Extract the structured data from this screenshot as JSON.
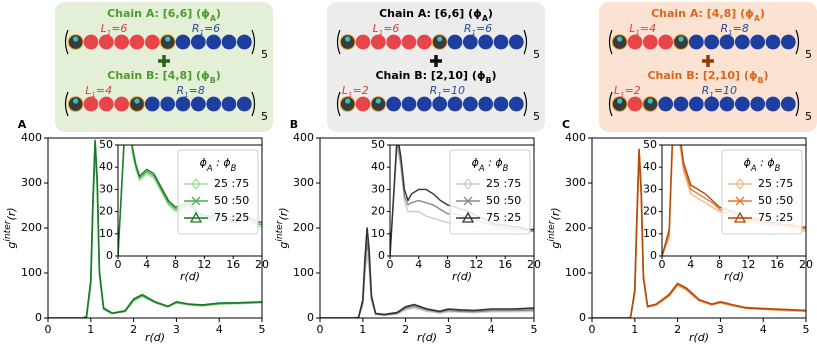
{
  "diagram_text": {
    "equals": "=",
    "repeat": "5"
  },
  "diagrams": [
    {
      "chains": [
        {
          "title": "Chain A: [6,6] (ϕ",
          "sub": "A",
          "end": ")",
          "left_label": "L",
          "left_sub": "1",
          "L": 6,
          "right_label": "R",
          "right_sub": "1",
          "R": 6
        },
        {
          "title": "Chain B: [4,8] (ϕ",
          "sub": "B",
          "end": ")",
          "left_label": "L",
          "left_sub": "1",
          "L": 4,
          "right_label": "R",
          "right_sub": "1",
          "R": 8
        }
      ]
    },
    {
      "chains": [
        {
          "title": "Chain A: [6,6] (ϕ",
          "sub": "A",
          "end": ")",
          "left_label": "L",
          "left_sub": "1",
          "L": 6,
          "right_label": "R",
          "right_sub": "1",
          "R": 6
        },
        {
          "title": "Chain B: [2,10] (ϕ",
          "sub": "B",
          "end": ")",
          "left_label": "L",
          "left_sub": "1",
          "L": 2,
          "right_label": "R",
          "right_sub": "1",
          "R": 10
        }
      ]
    },
    {
      "chains": [
        {
          "title": "Chain A: [4,8] (ϕ",
          "sub": "A",
          "end": ")",
          "left_label": "L",
          "left_sub": "1",
          "L": 4,
          "right_label": "R",
          "right_sub": "1",
          "R": 8
        },
        {
          "title": "Chain B: [2,10] (ϕ",
          "sub": "B",
          "end": ")",
          "left_label": "L",
          "left_sub": "1",
          "L": 2,
          "right_label": "R",
          "right_sub": "1",
          "R": 10
        }
      ]
    }
  ],
  "chart_data": [
    {
      "type": "line",
      "label": "A",
      "xlabel": "r(d)",
      "ylabel_parts": [
        "g",
        "inter",
        "(r)"
      ],
      "xlim": [
        0,
        5
      ],
      "ylim": [
        0,
        400
      ],
      "xticks": [
        0,
        1,
        2,
        3,
        4,
        5
      ],
      "yticks": [
        0,
        100,
        200,
        300,
        400
      ],
      "x": [
        0,
        0.8,
        0.9,
        1.0,
        1.05,
        1.1,
        1.15,
        1.2,
        1.3,
        1.5,
        1.8,
        2.0,
        2.2,
        2.5,
        2.8,
        3.0,
        3.3,
        3.6,
        4.0,
        4.5,
        5.0
      ],
      "legend_title_parts": [
        "ϕ",
        "A",
        " : ϕ",
        "B"
      ],
      "series": [
        {
          "name": "25 :75",
          "color": "#a6dba0",
          "values": [
            0,
            0,
            2,
            70,
            240,
            370,
            290,
            95,
            20,
            10,
            14,
            38,
            48,
            34,
            25,
            33,
            29,
            27,
            31,
            32,
            34
          ]
        },
        {
          "name": "50 :50",
          "color": "#4cae4c",
          "values": [
            0,
            0,
            2,
            80,
            250,
            390,
            300,
            100,
            20,
            10,
            15,
            40,
            50,
            35,
            25,
            35,
            30,
            28,
            32,
            33,
            35
          ]
        },
        {
          "name": "75 :25",
          "color": "#1b7a2a",
          "values": [
            0,
            0,
            3,
            85,
            260,
            395,
            310,
            105,
            22,
            11,
            16,
            42,
            52,
            36,
            26,
            36,
            31,
            29,
            33,
            34,
            36
          ]
        }
      ],
      "inset": {
        "xlabel": "r(d)",
        "xlim": [
          0,
          20
        ],
        "ylim": [
          0,
          50
        ],
        "xticks": [
          0,
          4,
          8,
          12,
          16,
          20
        ],
        "yticks": [
          0,
          10,
          20,
          30,
          40,
          50
        ],
        "x": [
          0,
          1,
          1.5,
          2,
          2.5,
          3,
          4,
          5,
          6,
          7,
          8,
          9,
          10,
          11,
          12,
          13,
          14,
          15,
          16,
          17,
          18,
          19,
          20
        ],
        "series": [
          {
            "values": [
              0,
              58,
              68,
              46,
              39,
              34,
              37,
              35,
              29,
              23,
              20,
              21,
              22,
              18,
              16,
              16,
              17,
              15,
              14,
              15,
              16,
              14,
              13
            ]
          },
          {
            "values": [
              0,
              60,
              70,
              48,
              40,
              35,
              38,
              36,
              30,
              24,
              21,
              22,
              23,
              19,
              17,
              17,
              18,
              16,
              15,
              16,
              17,
              15,
              14
            ]
          },
          {
            "values": [
              0,
              62,
              72,
              49,
              41,
              36,
              39,
              37,
              31,
              25,
              22,
              23,
              24,
              20,
              18,
              18,
              19,
              17,
              16,
              17,
              18,
              16,
              15
            ]
          }
        ]
      }
    },
    {
      "type": "line",
      "label": "B",
      "xlabel": "r(d)",
      "ylabel_parts": [
        "g",
        "inter",
        "(r)"
      ],
      "xlim": [
        0,
        5
      ],
      "ylim": [
        0,
        400
      ],
      "xticks": [
        0,
        1,
        2,
        3,
        4,
        5
      ],
      "yticks": [
        0,
        100,
        200,
        300,
        400
      ],
      "x": [
        0,
        0.8,
        0.9,
        1.0,
        1.05,
        1.1,
        1.15,
        1.2,
        1.3,
        1.5,
        1.8,
        2.0,
        2.2,
        2.5,
        2.8,
        3.0,
        3.3,
        3.6,
        4.0,
        4.5,
        5.0
      ],
      "legend_title_parts": [
        "ϕ",
        "A",
        " : ϕ",
        "B"
      ],
      "series": [
        {
          "name": "25 :75",
          "color": "#cccccc",
          "values": [
            0,
            0,
            1,
            30,
            100,
            140,
            110,
            40,
            8,
            6,
            9,
            18,
            22,
            15,
            11,
            14,
            13,
            12,
            14,
            14,
            15
          ]
        },
        {
          "name": "50 :50",
          "color": "#888888",
          "values": [
            0,
            0,
            1,
            35,
            115,
            170,
            130,
            45,
            9,
            7,
            10,
            22,
            26,
            18,
            13,
            17,
            15,
            14,
            17,
            17,
            18
          ]
        },
        {
          "name": "75 :25",
          "color": "#333333",
          "values": [
            0,
            0,
            1,
            40,
            130,
            200,
            150,
            50,
            10,
            8,
            12,
            25,
            30,
            20,
            15,
            20,
            18,
            17,
            20,
            20,
            22
          ]
        }
      ],
      "inset": {
        "xlabel": "r(d)",
        "xlim": [
          0,
          20
        ],
        "ylim": [
          0,
          50
        ],
        "xticks": [
          0,
          4,
          8,
          12,
          16,
          20
        ],
        "yticks": [
          0,
          10,
          20,
          30,
          40,
          50
        ],
        "x": [
          0,
          1,
          1.5,
          2,
          2.5,
          3,
          4,
          5,
          6,
          7,
          8,
          9,
          10,
          11,
          12,
          13,
          14,
          15,
          16,
          17,
          18,
          19,
          20
        ],
        "series": [
          {
            "values": [
              0,
              50,
              40,
              25,
              20,
              20,
              20,
              18,
              17,
              16,
              15,
              15,
              15,
              14,
              13,
              13,
              12,
              12,
              12,
              11,
              11,
              11,
              11
            ]
          },
          {
            "values": [
              0,
              52,
              42,
              27,
              23,
              24,
              25,
              24,
              23,
              21,
              19,
              19,
              18,
              17,
              16,
              15,
              14,
              13,
              13,
              12,
              12,
              12,
              11
            ]
          },
          {
            "values": [
              0,
              55,
              45,
              30,
              25,
              28,
              30,
              30,
              28,
              25,
              23,
              22,
              21,
              20,
              18,
              17,
              15,
              14,
              14,
              13,
              13,
              12,
              12
            ]
          }
        ]
      }
    },
    {
      "type": "line",
      "label": "C",
      "xlabel": "r(d)",
      "ylabel_parts": [
        "g",
        "inter",
        "(r)"
      ],
      "xlim": [
        0,
        5
      ],
      "ylim": [
        0,
        400
      ],
      "xticks": [
        0,
        1,
        2,
        3,
        4,
        5
      ],
      "yticks": [
        0,
        100,
        200,
        300,
        400
      ],
      "x": [
        0,
        0.8,
        0.9,
        1.0,
        1.05,
        1.1,
        1.15,
        1.2,
        1.3,
        1.5,
        1.8,
        2.0,
        2.2,
        2.5,
        2.8,
        3.0,
        3.3,
        3.6,
        4.0,
        4.5,
        5.0
      ],
      "legend_title_parts": [
        "ϕ",
        "A",
        " : ϕ",
        "B"
      ],
      "series": [
        {
          "name": "25 :75",
          "color": "#f5b78a",
          "values": [
            0,
            0,
            1,
            55,
            210,
            355,
            270,
            85,
            24,
            28,
            48,
            72,
            62,
            38,
            29,
            33,
            27,
            21,
            19,
            17,
            15
          ]
        },
        {
          "name": "50 :50",
          "color": "#e8762b",
          "values": [
            0,
            0,
            1,
            60,
            220,
            370,
            280,
            90,
            25,
            30,
            50,
            75,
            65,
            40,
            30,
            35,
            28,
            22,
            20,
            18,
            16
          ]
        },
        {
          "name": "75 :25",
          "color": "#b34a08",
          "values": [
            0,
            0,
            1,
            62,
            225,
            375,
            285,
            92,
            26,
            31,
            52,
            77,
            67,
            41,
            31,
            36,
            29,
            23,
            21,
            19,
            17
          ]
        }
      ],
      "inset": {
        "xlabel": "r(d)",
        "xlim": [
          0,
          20
        ],
        "ylim": [
          0,
          50
        ],
        "xticks": [
          0,
          4,
          8,
          12,
          16,
          20
        ],
        "yticks": [
          0,
          10,
          20,
          30,
          40,
          50
        ],
        "x": [
          0,
          1,
          1.5,
          2,
          2.5,
          3,
          4,
          5,
          6,
          7,
          8,
          9,
          10,
          11,
          12,
          13,
          14,
          15,
          16,
          17,
          18,
          19,
          20
        ],
        "series": [
          {
            "values": [
              0,
              8,
              52,
              58,
              50,
              38,
              28,
              26,
              24,
              22,
              20,
              19,
              18,
              16,
              15,
              15,
              14,
              14,
              13,
              13,
              12,
              12,
              11
            ]
          },
          {
            "values": [
              0,
              10,
              55,
              60,
              52,
              40,
              30,
              28,
              26,
              24,
              21,
              20,
              19,
              17,
              16,
              16,
              15,
              15,
              14,
              14,
              13,
              13,
              12
            ]
          },
          {
            "values": [
              0,
              12,
              58,
              62,
              54,
              42,
              32,
              30,
              28,
              25,
              22,
              21,
              20,
              18,
              17,
              17,
              16,
              15,
              15,
              14,
              14,
              13,
              13
            ]
          }
        ]
      }
    }
  ]
}
